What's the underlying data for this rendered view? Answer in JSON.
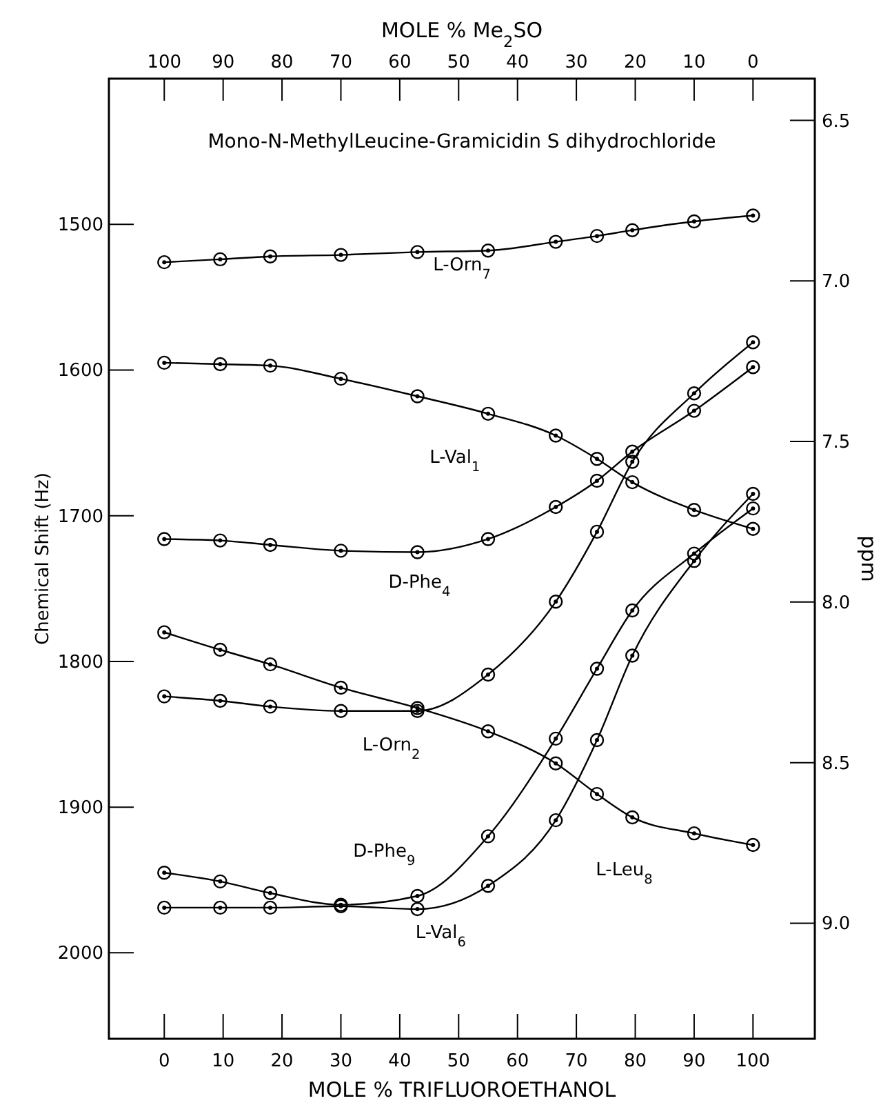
{
  "chart_data": {
    "type": "line",
    "title": "Mono-N-MethylLeucine-Gramicidin S dihydrochloride",
    "xlabel": "MOLE % TRIFLUOROETHANOL",
    "x2label": "MOLE % Me$_{2}$SO",
    "ylabel": "Chemical Shift (Hz)",
    "y2label": "ppm",
    "x": [
      0,
      9.5,
      18,
      30,
      43,
      55,
      66.5,
      73.5,
      79.5,
      90,
      100
    ],
    "xlim": [
      -9.4,
      110.5
    ],
    "xticks": [
      0,
      10,
      20,
      30,
      40,
      50,
      60,
      70,
      80,
      90,
      100
    ],
    "x2lim": [
      109.4,
      -10.5
    ],
    "x2ticks": [
      100,
      90,
      80,
      70,
      60,
      50,
      40,
      30,
      20,
      10,
      0
    ],
    "ylim": [
      2059,
      1400
    ],
    "yticks": [
      1500,
      1600,
      1700,
      1800,
      1900,
      2000
    ],
    "y2lim": [
      9.36,
      6.37
    ],
    "y2ticks": [
      {
        "value": 6.5,
        "label": "6.5"
      },
      {
        "value": 7,
        "label": "7.0"
      },
      {
        "value": 7.5,
        "label": "7.5"
      },
      {
        "value": 8,
        "label": "8.0"
      },
      {
        "value": 8.5,
        "label": "8.5"
      },
      {
        "value": 9,
        "label": "9.0"
      }
    ],
    "marker": "circle",
    "line_style": "solid",
    "grid": false,
    "series": [
      {
        "name": "L-Orn$_{7}$",
        "color": "#000000",
        "values": [
          1526,
          1524,
          1522,
          1521,
          1519,
          1518,
          1512,
          1508,
          1504,
          1498,
          1494
        ]
      },
      {
        "name": "L-Val$_{1}$",
        "color": "#000000",
        "values": [
          1595,
          1596,
          1597,
          1606,
          1618,
          1630,
          1645,
          1661,
          1677,
          1696,
          1709
        ]
      },
      {
        "name": "D-Phe$_{4}$",
        "color": "#000000",
        "values": [
          1716,
          1717,
          1720,
          1724,
          1725,
          1716,
          1694,
          1676,
          1656,
          1628,
          1598
        ]
      },
      {
        "name": "L-Orn$_{2}$",
        "color": "#000000",
        "values": [
          1824,
          1827,
          1831,
          1834,
          1834,
          1809,
          1759,
          1711,
          1663,
          1616,
          1581
        ]
      },
      {
        "name": "D-Phe$_{9}$",
        "color": "#000000",
        "values": [
          1945,
          1951,
          1959,
          1967,
          1961,
          1920,
          1853,
          1805,
          1765,
          1726,
          1695
        ]
      },
      {
        "name": "L-Val$_{6}$",
        "color": "#000000",
        "values": [
          1969,
          1969,
          1969,
          1968,
          1970,
          1954,
          1909,
          1854,
          1796,
          1731,
          1685
        ]
      },
      {
        "name": "L-Leu$_{8}$",
        "color": "#000000",
        "values": [
          1780,
          1792,
          1802,
          1818,
          1832,
          1848,
          1870,
          1891,
          1907,
          1918,
          1926
        ]
      }
    ]
  }
}
